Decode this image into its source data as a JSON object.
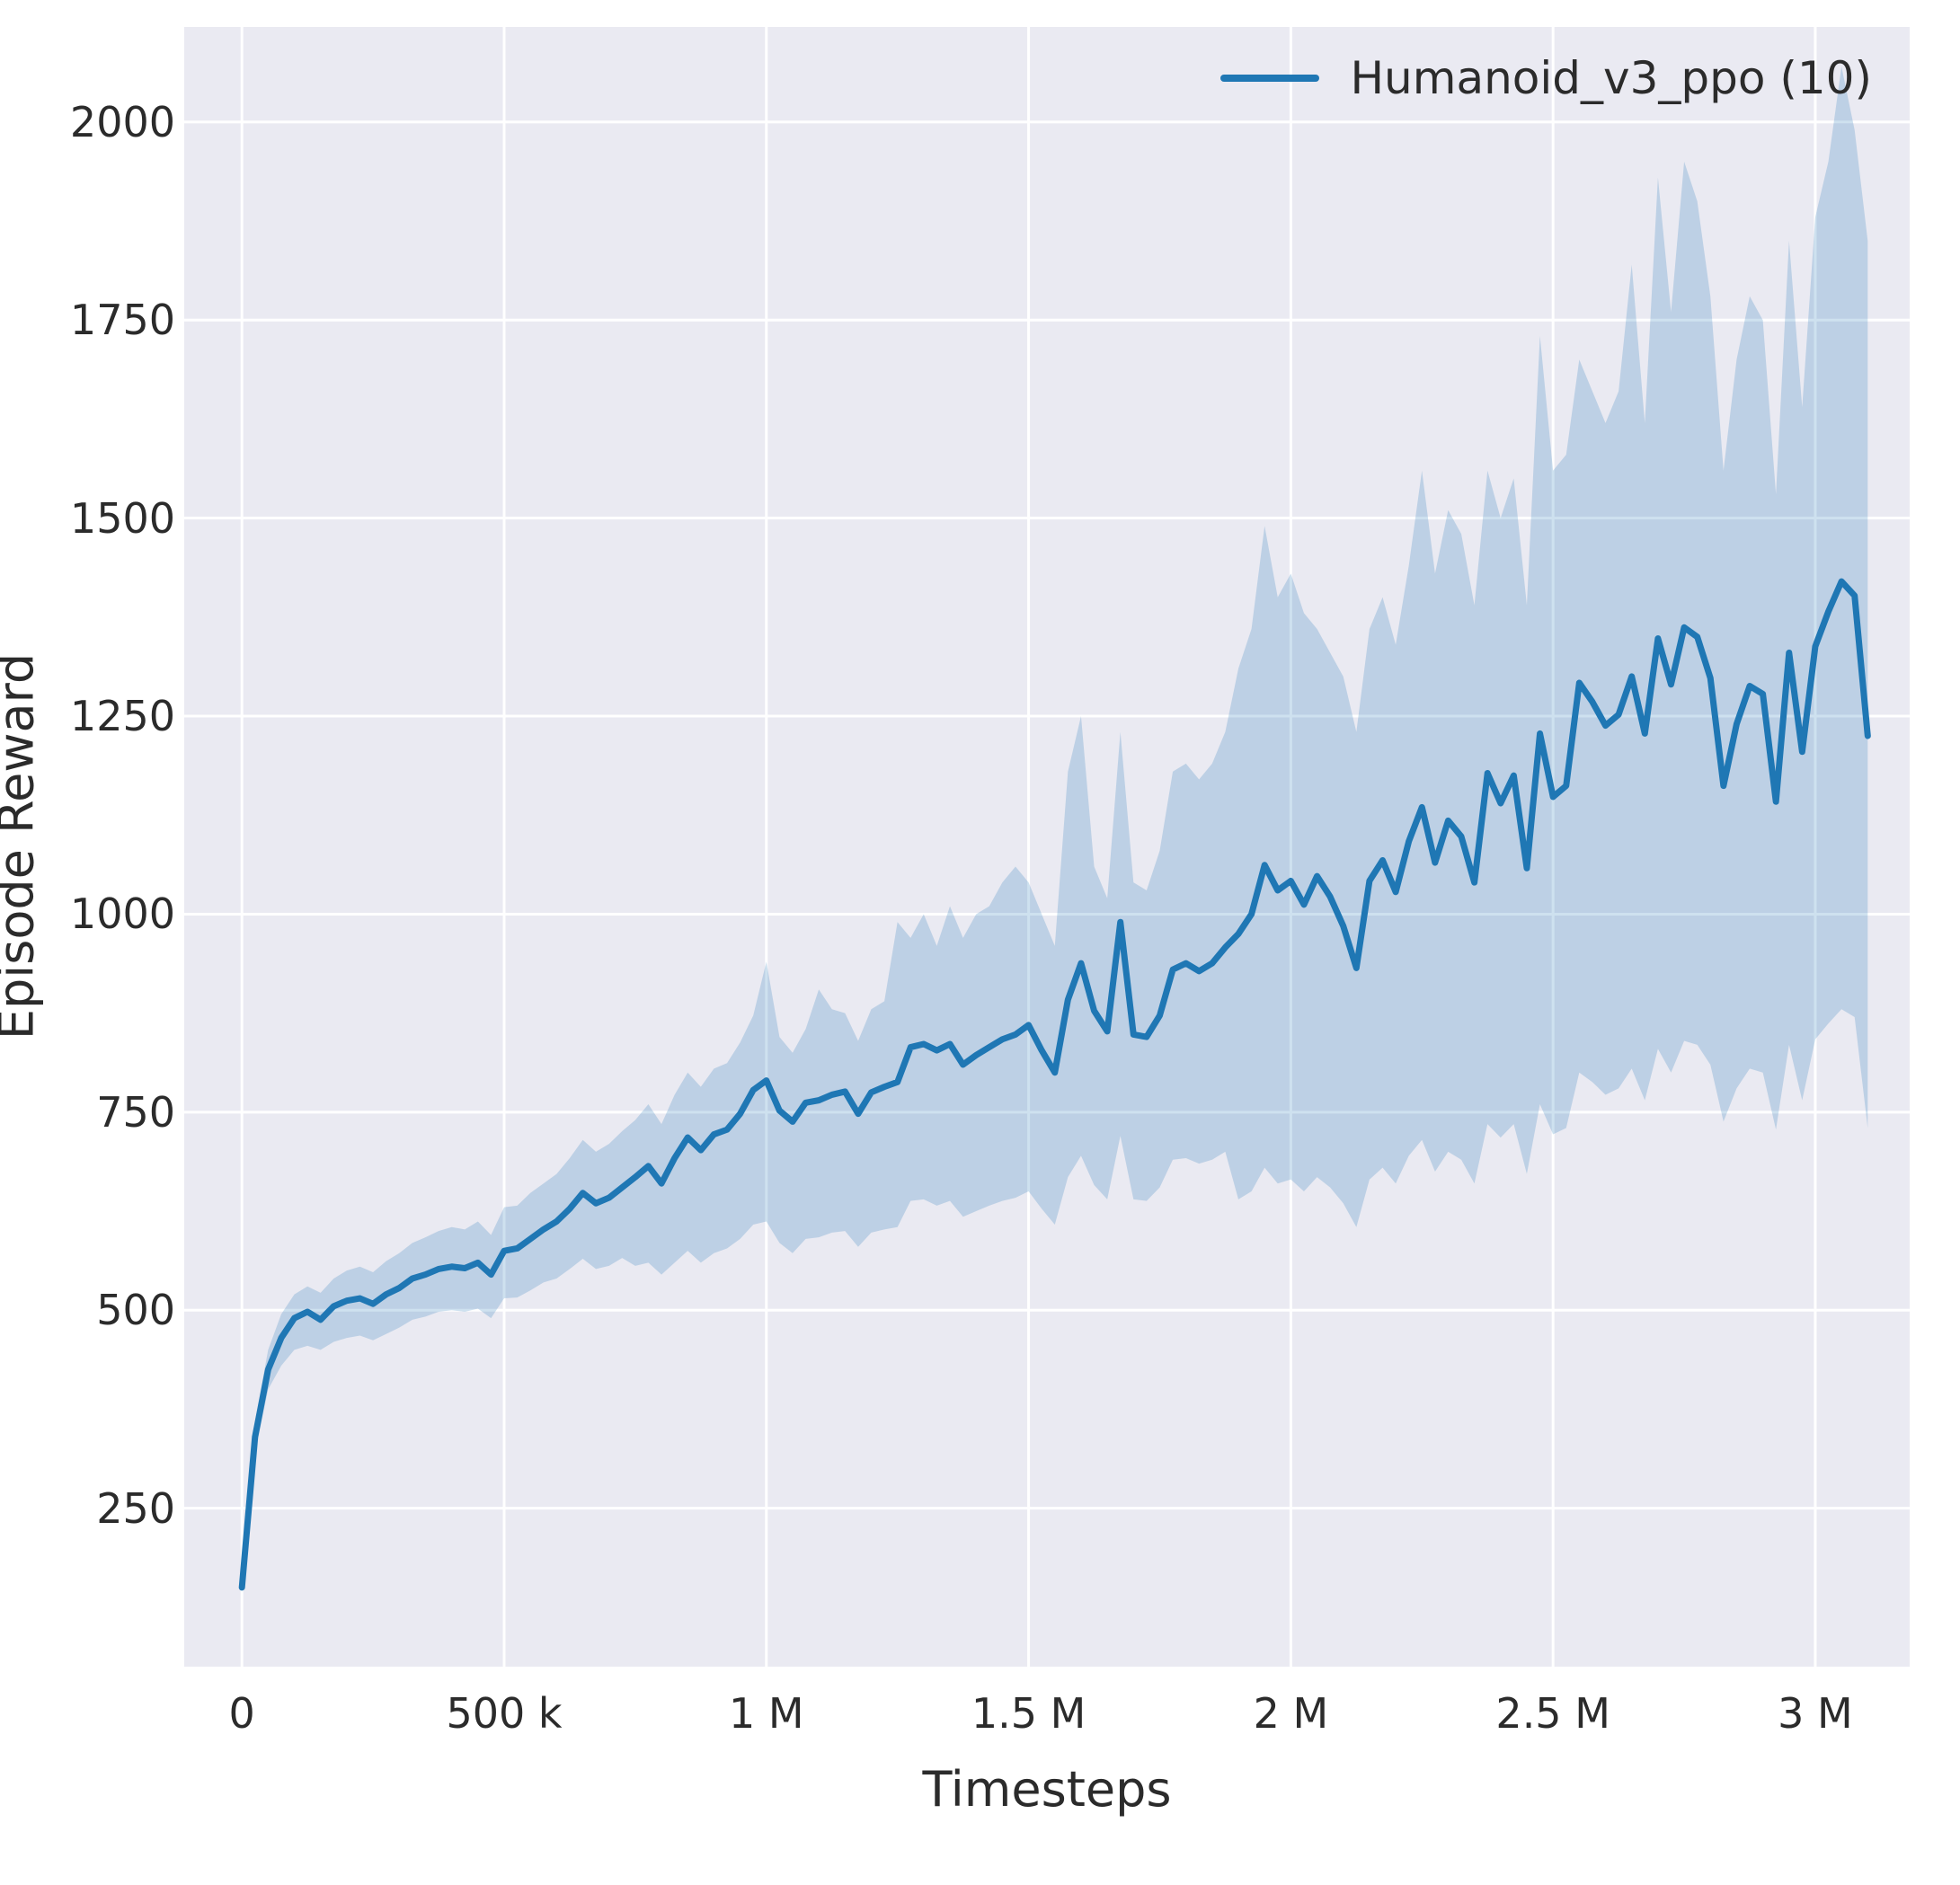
{
  "figure": {
    "xlabel": "Timesteps",
    "ylabel": "Episode Reward"
  },
  "legend": {
    "entries": [
      {
        "label": "Humanoid_v3_ppo (10)",
        "color": "#1f77b4"
      }
    ]
  },
  "colors": {
    "axes_background": "#eaeaf2",
    "grid": "#ffffff",
    "line": "#1f77b4",
    "text": "#2b2b2b"
  },
  "chart_data": {
    "type": "line",
    "title": "",
    "xlabel": "Timesteps",
    "ylabel": "Episode Reward",
    "grid": true,
    "legend_position": "upper right",
    "xlim": [
      -110000,
      3180000
    ],
    "ylim": [
      50,
      2120
    ],
    "xticks": {
      "values": [
        0,
        500000,
        1000000,
        1500000,
        2000000,
        2500000,
        3000000
      ],
      "labels": [
        "0",
        "500 k",
        "1 M",
        "1.5 M",
        "2 M",
        "2.5 M",
        "3 M"
      ]
    },
    "yticks": {
      "values": [
        250,
        500,
        750,
        1000,
        1250,
        1500,
        1750,
        2000
      ],
      "labels": [
        "250",
        "500",
        "750",
        "1000",
        "1250",
        "1500",
        "1750",
        "2000"
      ]
    },
    "series": [
      {
        "name": "Humanoid_v3_ppo (10)",
        "color": "#1f77b4",
        "band_alpha": 0.22,
        "x": [
          0,
          25000,
          50000,
          75000,
          100000,
          125000,
          150000,
          175000,
          200000,
          225000,
          250000,
          275000,
          300000,
          325000,
          350000,
          375000,
          400000,
          425000,
          450000,
          475000,
          500000,
          525000,
          550000,
          575000,
          600000,
          625000,
          650000,
          675000,
          700000,
          725000,
          750000,
          775000,
          800000,
          825000,
          850000,
          875000,
          900000,
          925000,
          950000,
          975000,
          1000000,
          1025000,
          1050000,
          1075000,
          1100000,
          1125000,
          1150000,
          1175000,
          1200000,
          1225000,
          1250000,
          1275000,
          1300000,
          1325000,
          1350000,
          1375000,
          1400000,
          1425000,
          1450000,
          1475000,
          1500000,
          1525000,
          1550000,
          1575000,
          1600000,
          1625000,
          1650000,
          1675000,
          1700000,
          1725000,
          1750000,
          1775000,
          1800000,
          1825000,
          1850000,
          1875000,
          1900000,
          1925000,
          1950000,
          1975000,
          2000000,
          2025000,
          2050000,
          2075000,
          2100000,
          2125000,
          2150000,
          2175000,
          2200000,
          2225000,
          2250000,
          2275000,
          2300000,
          2325000,
          2350000,
          2375000,
          2400000,
          2425000,
          2450000,
          2475000,
          2500000,
          2525000,
          2550000,
          2575000,
          2600000,
          2625000,
          2650000,
          2675000,
          2700000,
          2725000,
          2750000,
          2775000,
          2800000,
          2825000,
          2850000,
          2875000,
          2900000,
          2925000,
          2950000,
          2975000,
          3000000,
          3025000,
          3050000,
          3075000,
          3100000
        ],
        "mean": [
          150,
          340,
          425,
          465,
          490,
          498,
          488,
          505,
          512,
          515,
          508,
          520,
          528,
          540,
          545,
          552,
          555,
          553,
          560,
          545,
          575,
          578,
          590,
          602,
          612,
          628,
          648,
          635,
          642,
          655,
          668,
          682,
          660,
          692,
          718,
          702,
          722,
          728,
          748,
          778,
          790,
          752,
          738,
          762,
          765,
          772,
          776,
          748,
          775,
          782,
          788,
          832,
          836,
          828,
          836,
          810,
          822,
          832,
          842,
          848,
          860,
          828,
          800,
          892,
          938,
          878,
          852,
          990,
          848,
          845,
          872,
          930,
          938,
          928,
          938,
          958,
          975,
          1000,
          1062,
          1030,
          1042,
          1012,
          1048,
          1022,
          985,
          932,
          1042,
          1068,
          1028,
          1092,
          1135,
          1065,
          1118,
          1098,
          1040,
          1178,
          1140,
          1175,
          1058,
          1228,
          1148,
          1162,
          1292,
          1268,
          1238,
          1252,
          1300,
          1228,
          1348,
          1290,
          1362,
          1350,
          1298,
          1162,
          1240,
          1288,
          1278,
          1142,
          1330,
          1205,
          1338,
          1382,
          1420,
          1402,
          1225
        ],
        "lower": [
          150,
          320,
          400,
          430,
          450,
          455,
          450,
          460,
          465,
          468,
          462,
          470,
          478,
          488,
          492,
          498,
          500,
          498,
          502,
          490,
          515,
          516,
          525,
          535,
          540,
          552,
          565,
          552,
          556,
          566,
          556,
          560,
          545,
          560,
          575,
          560,
          572,
          578,
          590,
          608,
          612,
          585,
          572,
          590,
          592,
          598,
          600,
          580,
          598,
          602,
          605,
          638,
          640,
          632,
          638,
          618,
          625,
          632,
          638,
          642,
          650,
          628,
          608,
          668,
          695,
          658,
          640,
          720,
          640,
          638,
          655,
          690,
          692,
          685,
          690,
          700,
          640,
          650,
          680,
          660,
          665,
          650,
          668,
          655,
          635,
          605,
          665,
          680,
          660,
          695,
          715,
          675,
          700,
          690,
          660,
          735,
          718,
          735,
          672,
          760,
          722,
          730,
          800,
          788,
          772,
          780,
          805,
          765,
          830,
          800,
          840,
          835,
          810,
          738,
          780,
          805,
          800,
          728,
          835,
          765,
          842,
          862,
          880,
          870,
          730
        ],
        "upper": [
          150,
          360,
          450,
          495,
          520,
          530,
          522,
          540,
          550,
          555,
          548,
          562,
          572,
          585,
          592,
          600,
          605,
          602,
          612,
          595,
          630,
          632,
          648,
          660,
          672,
          692,
          715,
          700,
          710,
          726,
          740,
          760,
          735,
          772,
          800,
          782,
          805,
          812,
          838,
          872,
          940,
          845,
          825,
          855,
          905,
          880,
          875,
          840,
          880,
          890,
          990,
          970,
          1000,
          960,
          1010,
          970,
          1000,
          1010,
          1040,
          1060,
          1040,
          1000,
          960,
          1180,
          1250,
          1060,
          1020,
          1230,
          1040,
          1030,
          1080,
          1180,
          1190,
          1170,
          1190,
          1230,
          1310,
          1360,
          1490,
          1400,
          1430,
          1380,
          1360,
          1330,
          1300,
          1230,
          1360,
          1400,
          1340,
          1440,
          1560,
          1430,
          1510,
          1480,
          1390,
          1560,
          1500,
          1550,
          1390,
          1730,
          1560,
          1580,
          1700,
          1660,
          1620,
          1660,
          1820,
          1620,
          1930,
          1760,
          1950,
          1900,
          1780,
          1560,
          1700,
          1780,
          1750,
          1530,
          1850,
          1640,
          1880,
          1950,
          2070,
          1990,
          1850
        ]
      }
    ]
  }
}
